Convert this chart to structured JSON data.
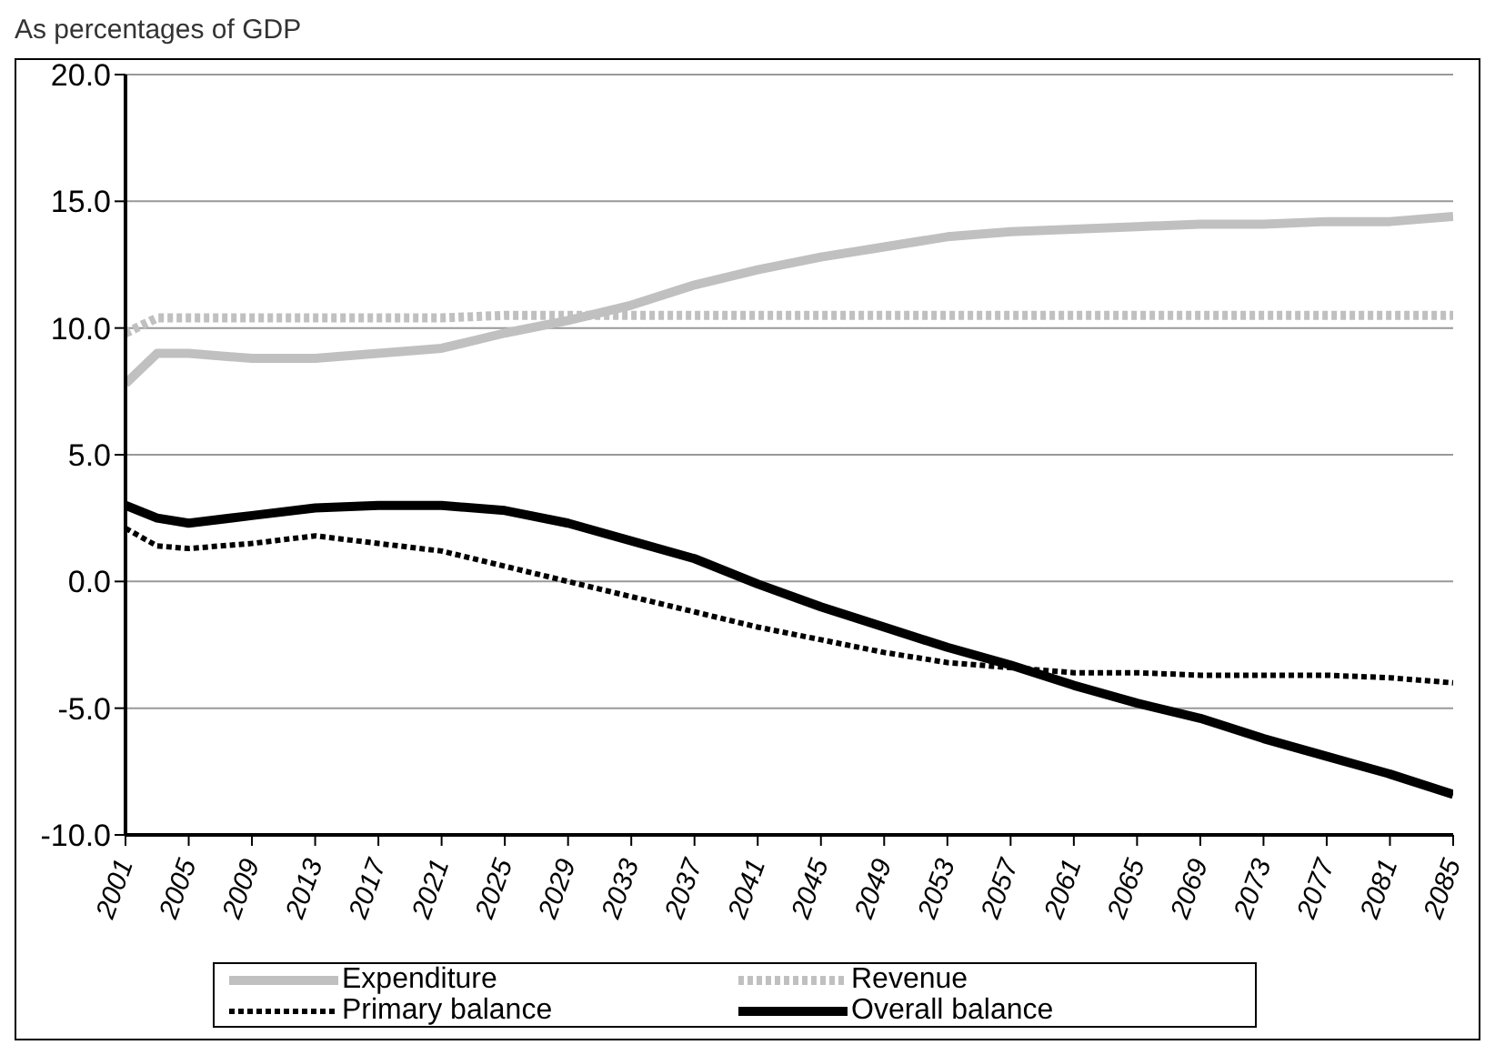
{
  "chart_data": {
    "type": "line",
    "title": "As percentages of GDP",
    "x": [
      2001,
      2003,
      2005,
      2009,
      2013,
      2017,
      2021,
      2025,
      2029,
      2033,
      2037,
      2041,
      2045,
      2049,
      2053,
      2057,
      2061,
      2065,
      2069,
      2073,
      2077,
      2081,
      2085
    ],
    "xlim": [
      2001,
      2085
    ],
    "xticks": [
      2001,
      2005,
      2009,
      2013,
      2017,
      2021,
      2025,
      2029,
      2033,
      2037,
      2041,
      2045,
      2049,
      2053,
      2057,
      2061,
      2065,
      2069,
      2073,
      2077,
      2081,
      2085
    ],
    "ylim": [
      -10,
      20
    ],
    "yticks": [
      {
        "value": -10,
        "label": "-10.0"
      },
      {
        "value": -5,
        "label": "-5.0"
      },
      {
        "value": 0,
        "label": "0.0"
      },
      {
        "value": 5,
        "label": "5.0"
      },
      {
        "value": 10,
        "label": "10.0"
      },
      {
        "value": 15,
        "label": "15.0"
      },
      {
        "value": 20,
        "label": "20.0"
      }
    ],
    "grid": "y",
    "legend": "bottom",
    "marker": "none",
    "series": [
      {
        "name": "Expenditure",
        "color": "#c0c0c0",
        "line_style": "solid",
        "values": [
          7.8,
          9.0,
          9.0,
          8.8,
          8.8,
          9.0,
          9.2,
          9.8,
          10.3,
          10.9,
          11.7,
          12.3,
          12.8,
          13.2,
          13.6,
          13.8,
          13.9,
          14.0,
          14.1,
          14.1,
          14.2,
          14.2,
          14.4
        ]
      },
      {
        "name": "Revenue",
        "color": "#c0c0c0",
        "line_style": "dotted",
        "values": [
          9.8,
          10.4,
          10.4,
          10.4,
          10.4,
          10.4,
          10.4,
          10.5,
          10.5,
          10.5,
          10.5,
          10.5,
          10.5,
          10.5,
          10.5,
          10.5,
          10.5,
          10.5,
          10.5,
          10.5,
          10.5,
          10.5,
          10.5
        ]
      },
      {
        "name": "Primary balance",
        "color": "#000000",
        "line_style": "dotted",
        "values": [
          2.1,
          1.4,
          1.3,
          1.5,
          1.8,
          1.5,
          1.2,
          0.6,
          0.0,
          -0.6,
          -1.2,
          -1.8,
          -2.3,
          -2.8,
          -3.2,
          -3.4,
          -3.6,
          -3.6,
          -3.7,
          -3.7,
          -3.7,
          -3.8,
          -4.0
        ]
      },
      {
        "name": "Overall balance",
        "color": "#000000",
        "line_style": "solid",
        "values": [
          3.0,
          2.5,
          2.3,
          2.6,
          2.9,
          3.0,
          3.0,
          2.8,
          2.3,
          1.6,
          0.9,
          -0.1,
          -1.0,
          -1.8,
          -2.6,
          -3.3,
          -4.1,
          -4.8,
          -5.4,
          -6.2,
          -6.9,
          -7.6,
          -8.4
        ]
      }
    ]
  }
}
